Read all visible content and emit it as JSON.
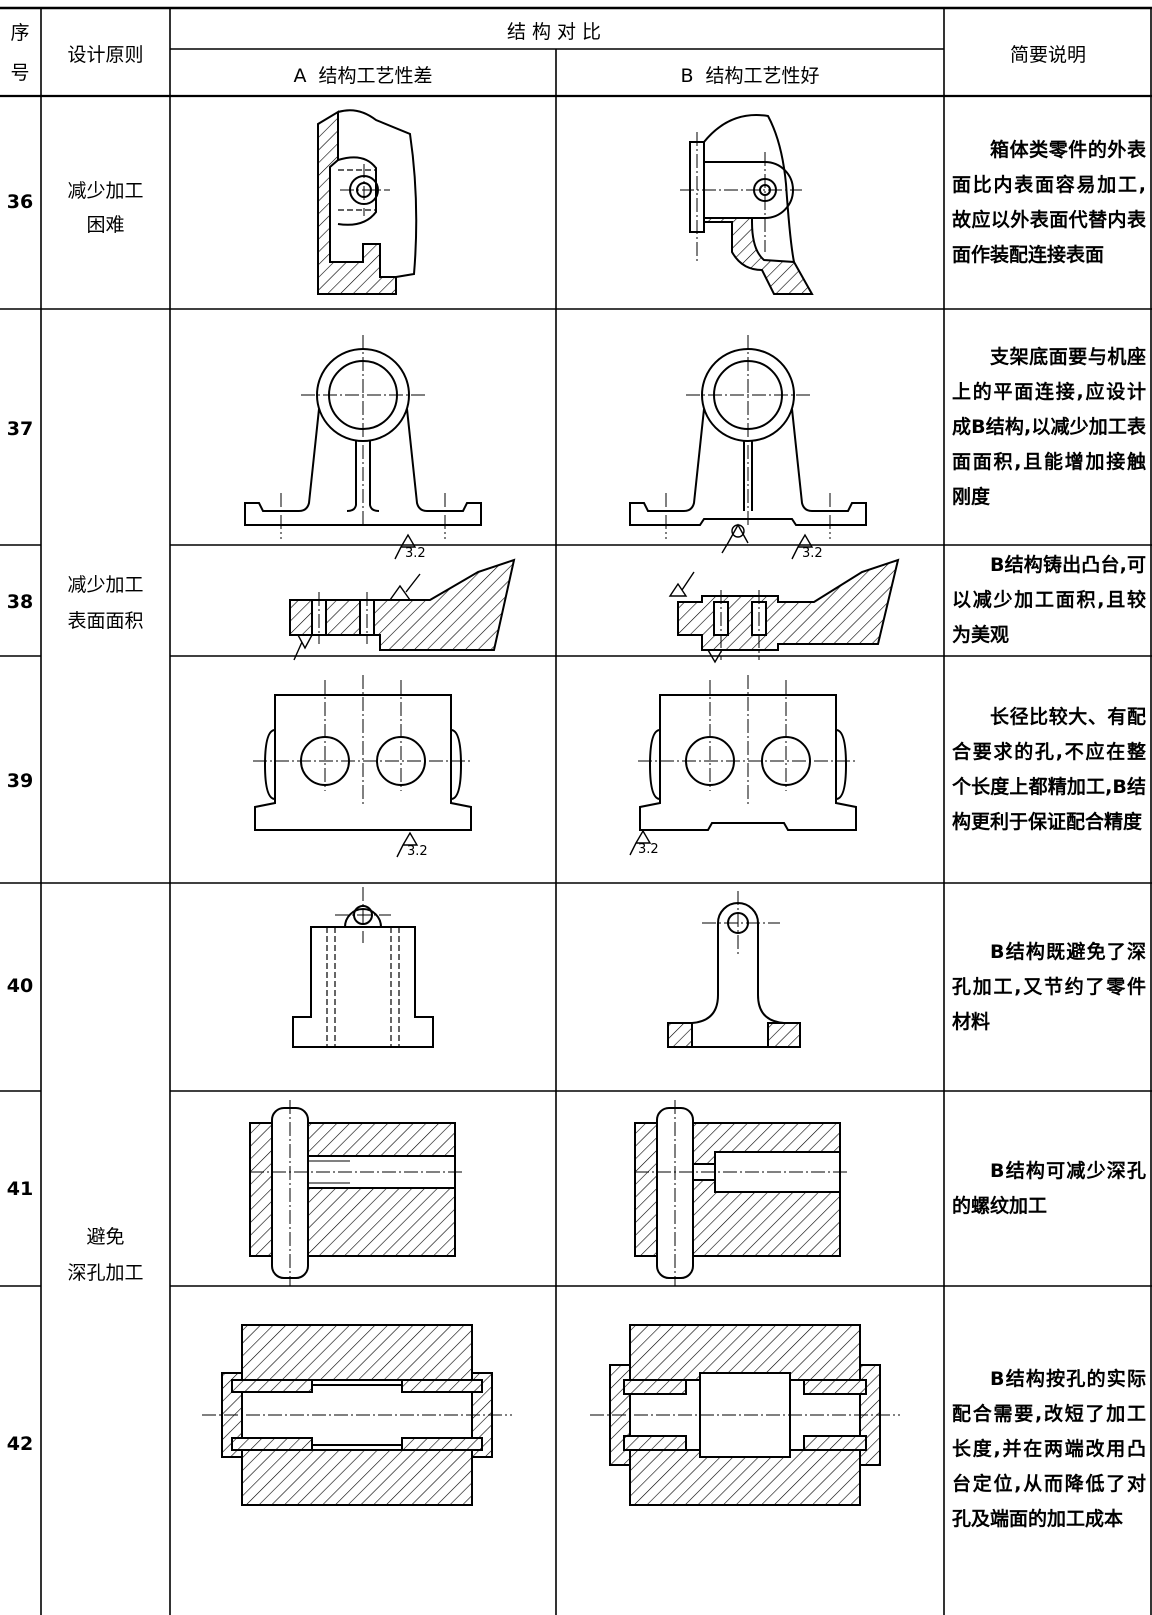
{
  "header": {
    "no_lines": [
      "序",
      "号"
    ],
    "principle": "设计原则",
    "comparison": "结构对比",
    "col_a": "A  结构工艺性差",
    "col_b": "B  结构工艺性好",
    "note": "简要说明"
  },
  "groups": [
    {
      "principle_lines": [
        "减少加工",
        "困难"
      ]
    },
    {
      "principle_lines": [
        "减少加工",
        "表面面积"
      ]
    },
    {
      "principle_lines": [
        "避免",
        "深孔加工"
      ]
    }
  ],
  "rows": [
    {
      "no": 36,
      "description": "箱体类零件的外表面比内表面容易加工,故应以外表面代替内表面作装配连接表面"
    },
    {
      "no": 37,
      "description": "支架底面要与机座上的平面连接,应设计成B结构,以减少加工表面面积,且能增加接触刚度",
      "a_notes": [
        3.2
      ],
      "b_notes": [
        3.2
      ]
    },
    {
      "no": 38,
      "description": "B结构铸出凸台,可以减少加工面积,且较为美观"
    },
    {
      "no": 39,
      "description": "长径比较大、有配合要求的孔,不应在整个长度上都精加工,B结构更利于保证配合精度",
      "a_notes": [
        3.2
      ],
      "b_notes": [
        3.2
      ]
    },
    {
      "no": 40,
      "description": "B结构既避免了深孔加工,又节约了零件材料"
    },
    {
      "no": 41,
      "description": "B结构可减少深孔的螺纹加工"
    },
    {
      "no": 42,
      "description": "B结构按孔的实际配合需要,改短了加工长度,并在两端改用凸台定位,从而降低了对孔及端面的加工成本"
    }
  ]
}
